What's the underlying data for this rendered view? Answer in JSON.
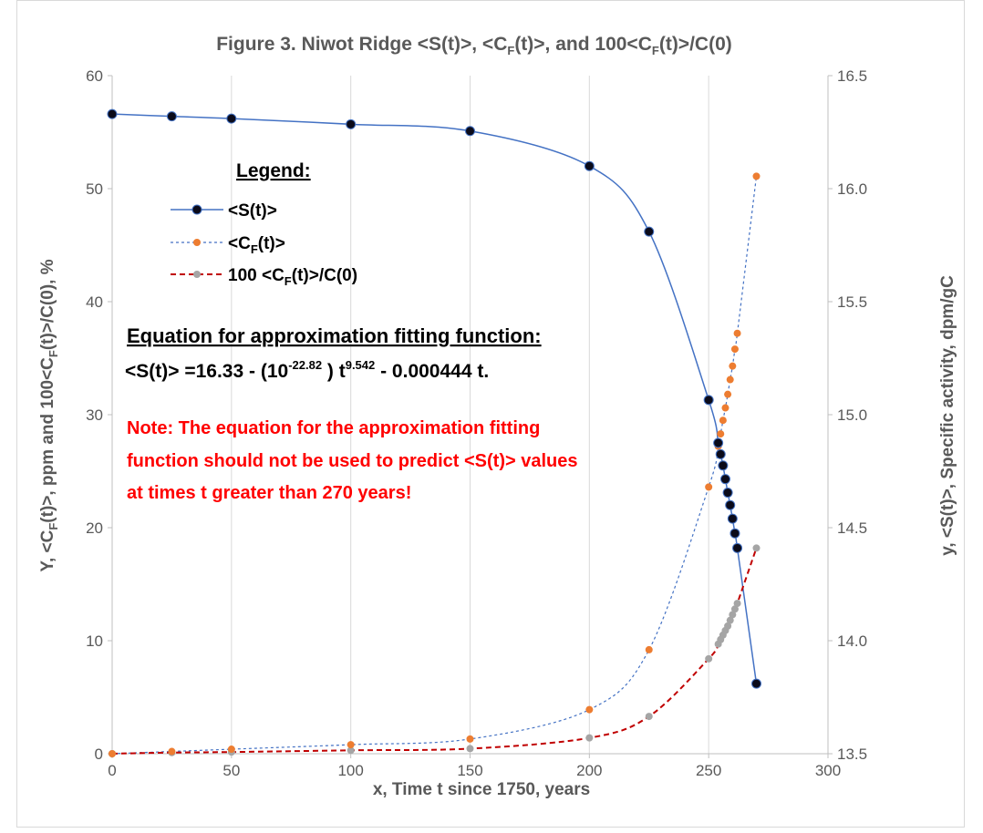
{
  "chart_data": {
    "type": "line",
    "title": {
      "pre": "Figure 3.  Niwot Ridge <S(t)>, <C",
      "sub1": "F",
      "mid": "(t)>, and 100<C",
      "sub2": "F",
      "post": "(t)>/C(0)"
    },
    "xlabel": "x, Time t since 1750, years",
    "ylabel_left": {
      "a": "Y, <C",
      "sub1": "F",
      "b": "(t)>, ppm  and  100<C",
      "sub2": "F",
      "c": "(t)>/C(0), %"
    },
    "ylabel_right": "y, <S(t)>, Specific activity, dpm/gC",
    "xlim": [
      0,
      300
    ],
    "ylim_left": [
      0,
      60
    ],
    "ylim_right": [
      13.5,
      16.5
    ],
    "x_ticks": [
      0,
      50,
      100,
      150,
      200,
      250,
      300
    ],
    "y_left_ticks": [
      0,
      10,
      20,
      30,
      40,
      50,
      60
    ],
    "y_right_ticks": [
      "13.5",
      "14.0",
      "14.5",
      "15.0",
      "15.5",
      "16.0",
      "16.5"
    ],
    "grid": "vertical",
    "legend": {
      "heading": "Legend:",
      "entries": [
        {
          "text": "<S(t)>",
          "color": "#4472c4",
          "marker": "#0b0b1a"
        },
        {
          "pre": "<C",
          "sub": "F",
          "post": "(t)>",
          "color": "#4472c4",
          "marker": "#ed7d31"
        },
        {
          "pre": "100 <C",
          "sub": "F",
          "post": "(t)>/C(0)",
          "color": "#c00000",
          "marker": "#a5a5a5"
        }
      ]
    },
    "equation": {
      "heading": "Equation for approximation fitting function:",
      "pre": "<S(t)> =16.33 - (10",
      "sup1": "-22.82",
      "mid": " ) t",
      "sup2": "9.542",
      "post": " - 0.000444 t."
    },
    "note_lines": [
      "Note: The equation for the approximation fitting",
      "function should not be used to predict <S(t)> values",
      "at times t greater than 270 years!"
    ],
    "series": [
      {
        "name": "<S(t)>",
        "axis": "right",
        "color": "#4472c4",
        "marker": "#0b0b1a",
        "x": [
          0,
          25,
          50,
          100,
          150,
          200,
          225,
          250,
          254,
          255,
          256,
          257,
          258,
          259,
          260,
          261,
          262,
          270
        ],
        "y": [
          16.33,
          16.32,
          16.31,
          16.285,
          16.255,
          16.1,
          15.81,
          15.065,
          14.875,
          14.825,
          14.775,
          14.715,
          14.655,
          14.6,
          14.54,
          14.475,
          14.41,
          13.81
        ]
      },
      {
        "name": "<CF(t)>",
        "axis": "left",
        "color": "#4472c4",
        "marker": "#ed7d31",
        "x": [
          0,
          25,
          50,
          100,
          150,
          200,
          225,
          250,
          254,
          255,
          256,
          257,
          258,
          259,
          260,
          261,
          262,
          270
        ],
        "y": [
          0,
          0.2,
          0.4,
          0.8,
          1.3,
          3.9,
          9.2,
          23.6,
          27.2,
          28.3,
          29.5,
          30.6,
          31.8,
          33.1,
          34.3,
          35.8,
          37.2,
          51.1
        ]
      },
      {
        "name": "100 <CF(t)>/C(0)",
        "axis": "left",
        "color": "#c00000",
        "marker": "#a5a5a5",
        "x": [
          0,
          25,
          50,
          100,
          150,
          200,
          225,
          250,
          254,
          255,
          256,
          257,
          258,
          259,
          260,
          261,
          262,
          270
        ],
        "y": [
          0,
          0.1,
          0.15,
          0.3,
          0.45,
          1.4,
          3.3,
          8.4,
          9.7,
          10.1,
          10.5,
          10.9,
          11.3,
          11.8,
          12.3,
          12.8,
          13.3,
          18.2
        ]
      }
    ]
  }
}
